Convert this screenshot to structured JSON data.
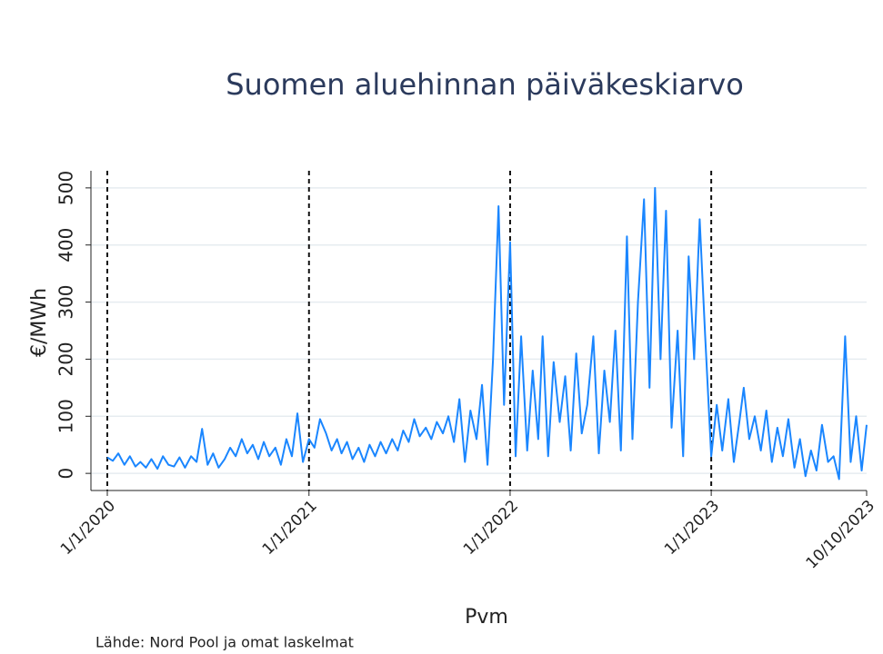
{
  "chart_data": {
    "type": "line",
    "title": "Suomen aluehinnan päiväkeskiarvo",
    "x_label": "Pvm",
    "y_label": "€/MWh",
    "source": "Lähde: Nord Pool ja omat laskelmat",
    "color": "#1a86ff",
    "xlim": [
      "1/1/2020",
      "10/10/2023"
    ],
    "xticks": [
      "1/1/2020",
      "1/1/2021",
      "1/1/2022",
      "1/1/2023",
      "10/10/2023"
    ],
    "vlines": [
      "1/1/2020",
      "1/1/2021",
      "1/1/2022",
      "1/1/2023"
    ],
    "ylim": [
      -30,
      530
    ],
    "yticks": [
      0,
      100,
      200,
      300,
      400,
      500
    ],
    "grid": true,
    "x": [
      "1/1/2020",
      "1/11/2020",
      "1/21/2020",
      "2/1/2020",
      "2/11/2020",
      "2/21/2020",
      "3/1/2020",
      "3/11/2020",
      "3/21/2020",
      "4/1/2020",
      "4/11/2020",
      "4/21/2020",
      "5/1/2020",
      "5/11/2020",
      "5/21/2020",
      "6/1/2020",
      "6/11/2020",
      "6/21/2020",
      "7/1/2020",
      "7/11/2020",
      "7/21/2020",
      "8/1/2020",
      "8/11/2020",
      "8/21/2020",
      "9/1/2020",
      "9/11/2020",
      "9/21/2020",
      "10/1/2020",
      "10/11/2020",
      "10/21/2020",
      "11/1/2020",
      "11/11/2020",
      "11/21/2020",
      "12/1/2020",
      "12/11/2020",
      "12/21/2020",
      "1/1/2021",
      "1/11/2021",
      "1/21/2021",
      "2/1/2021",
      "2/11/2021",
      "2/21/2021",
      "3/1/2021",
      "3/11/2021",
      "3/21/2021",
      "4/1/2021",
      "4/11/2021",
      "4/21/2021",
      "5/1/2021",
      "5/11/2021",
      "5/21/2021",
      "6/1/2021",
      "6/11/2021",
      "6/21/2021",
      "7/1/2021",
      "7/11/2021",
      "7/21/2021",
      "8/1/2021",
      "8/11/2021",
      "8/21/2021",
      "9/1/2021",
      "9/11/2021",
      "9/21/2021",
      "10/1/2021",
      "10/11/2021",
      "10/21/2021",
      "11/1/2021",
      "11/11/2021",
      "11/21/2021",
      "12/1/2021",
      "12/11/2021",
      "12/21/2021",
      "1/1/2022",
      "1/11/2022",
      "1/21/2022",
      "2/1/2022",
      "2/11/2022",
      "2/21/2022",
      "3/1/2022",
      "3/11/2022",
      "3/21/2022",
      "4/1/2022",
      "4/11/2022",
      "4/21/2022",
      "5/1/2022",
      "5/11/2022",
      "5/21/2022",
      "6/1/2022",
      "6/11/2022",
      "6/21/2022",
      "7/1/2022",
      "7/11/2022",
      "7/21/2022",
      "8/1/2022",
      "8/11/2022",
      "8/21/2022",
      "9/1/2022",
      "9/11/2022",
      "9/21/2022",
      "10/1/2022",
      "10/11/2022",
      "10/21/2022",
      "11/1/2022",
      "11/11/2022",
      "11/21/2022",
      "12/1/2022",
      "12/11/2022",
      "12/21/2022",
      "1/1/2023",
      "1/11/2023",
      "1/21/2023",
      "2/1/2023",
      "2/11/2023",
      "2/21/2023",
      "3/1/2023",
      "3/11/2023",
      "3/21/2023",
      "4/1/2023",
      "4/11/2023",
      "4/21/2023",
      "5/1/2023",
      "5/11/2023",
      "5/21/2023",
      "6/1/2023",
      "6/11/2023",
      "6/21/2023",
      "7/1/2023",
      "7/11/2023",
      "7/21/2023",
      "8/1/2023",
      "8/11/2023",
      "8/21/2023",
      "9/1/2023",
      "9/11/2023",
      "9/21/2023",
      "10/1/2023",
      "10/10/2023"
    ],
    "values": [
      28,
      22,
      35,
      15,
      30,
      12,
      20,
      10,
      25,
      8,
      30,
      15,
      12,
      28,
      10,
      30,
      20,
      78,
      15,
      35,
      10,
      25,
      45,
      30,
      60,
      35,
      50,
      25,
      55,
      30,
      45,
      15,
      60,
      30,
      105,
      20,
      60,
      45,
      95,
      70,
      40,
      60,
      35,
      55,
      25,
      45,
      20,
      50,
      30,
      55,
      35,
      60,
      40,
      75,
      55,
      95,
      65,
      80,
      60,
      90,
      70,
      100,
      55,
      130,
      20,
      110,
      60,
      155,
      15,
      200,
      468,
      120,
      405,
      30,
      240,
      40,
      180,
      60,
      240,
      30,
      195,
      90,
      170,
      40,
      210,
      70,
      120,
      240,
      35,
      180,
      90,
      250,
      40,
      415,
      60,
      300,
      480,
      150,
      500,
      200,
      460,
      80,
      250,
      30,
      380,
      200,
      445,
      240,
      30,
      120,
      40,
      130,
      20,
      90,
      150,
      60,
      100,
      40,
      110,
      20,
      80,
      30,
      95,
      10,
      60,
      -5,
      40,
      5,
      85,
      20,
      30,
      -10,
      240,
      20,
      100,
      5,
      85
    ]
  }
}
